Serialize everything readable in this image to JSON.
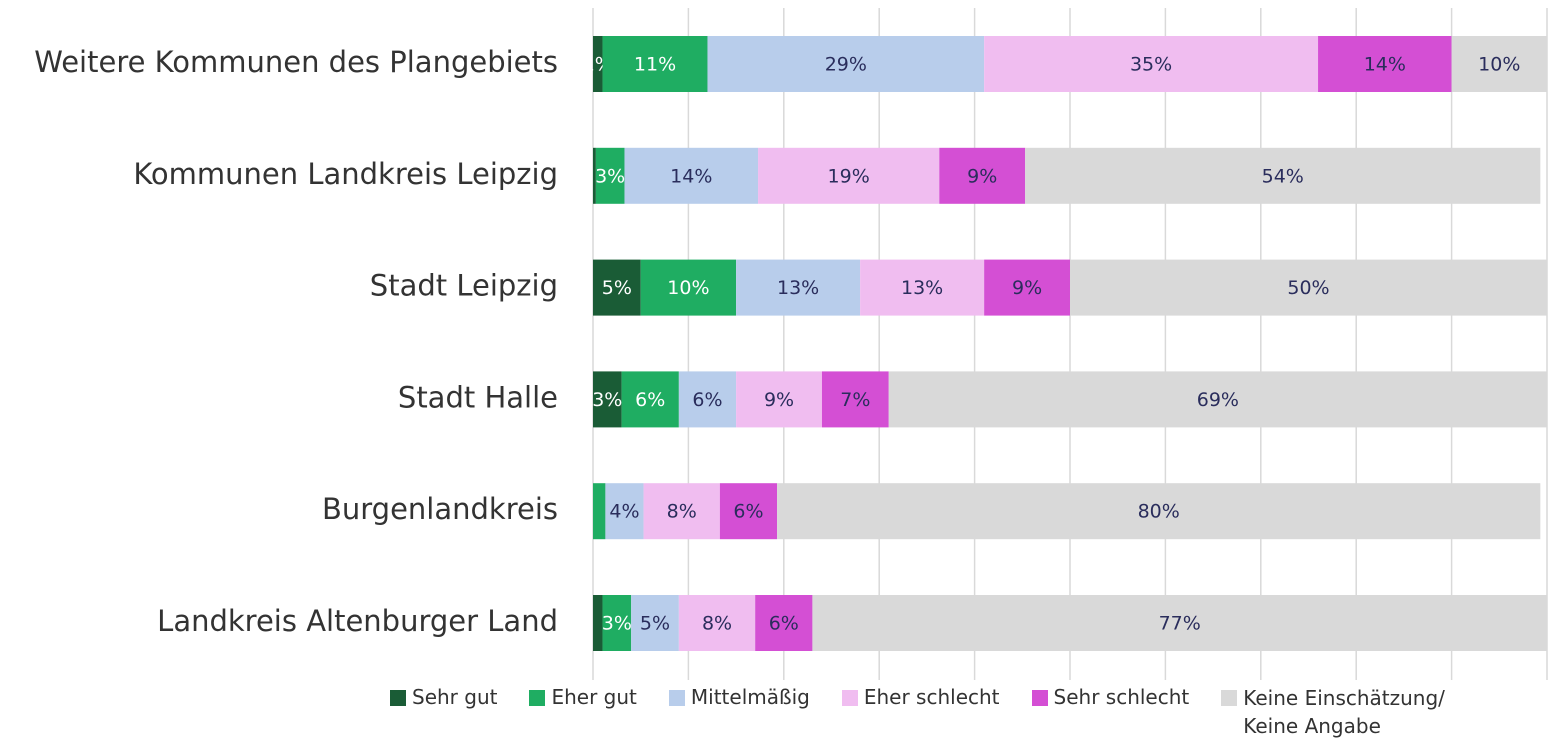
{
  "chart_data": {
    "type": "stacked_barh",
    "categories": [
      "Weitere Kommunen des Plangebiets",
      "Kommunen Landkreis Leipzig",
      "Stadt Leipzig",
      "Stadt Halle",
      "Burgenlandkreis",
      "Landkreis Altenburger Land"
    ],
    "series": [
      {
        "name": "Sehr gut",
        "color": "#1a5c36",
        "values": [
          1,
          0.3,
          5,
          3,
          0,
          1
        ],
        "value_labels": [
          "1%",
          null,
          "5%",
          "3%",
          null,
          null
        ]
      },
      {
        "name": "Eher gut",
        "color": "#1fad62",
        "values": [
          11,
          3,
          10,
          6,
          1.3,
          3
        ],
        "value_labels": [
          "11%",
          "3%",
          "10%",
          "6%",
          null,
          "3%"
        ]
      },
      {
        "name": "Mittelmäßig",
        "color": "#b8cdeb",
        "values": [
          29,
          14,
          13,
          6,
          4,
          5
        ],
        "value_labels": [
          "29%",
          "14%",
          "13%",
          "6%",
          "4%",
          "5%"
        ]
      },
      {
        "name": "Eher schlecht",
        "color": "#f0bdf0",
        "values": [
          35,
          19,
          13,
          9,
          8,
          8
        ],
        "value_labels": [
          "35%",
          "19%",
          "13%",
          "9%",
          "8%",
          "8%"
        ]
      },
      {
        "name": "Sehr schlecht",
        "color": "#d44fd4",
        "values": [
          14,
          9,
          9,
          7,
          6,
          6
        ],
        "value_labels": [
          "14%",
          "9%",
          "9%",
          "7%",
          "6%",
          "6%"
        ]
      },
      {
        "name": "Keine Einschätzung/ Keine Angabe",
        "color": "#d9d9d9",
        "values": [
          10,
          54,
          50,
          69,
          80,
          77
        ],
        "value_labels": [
          "10%",
          "54%",
          "50%",
          "69%",
          "80%",
          "77%"
        ]
      }
    ],
    "xlim": [
      0,
      100
    ],
    "xticks": [
      0,
      10,
      20,
      30,
      40,
      50,
      60,
      70,
      80,
      90,
      100
    ],
    "grid": true
  }
}
